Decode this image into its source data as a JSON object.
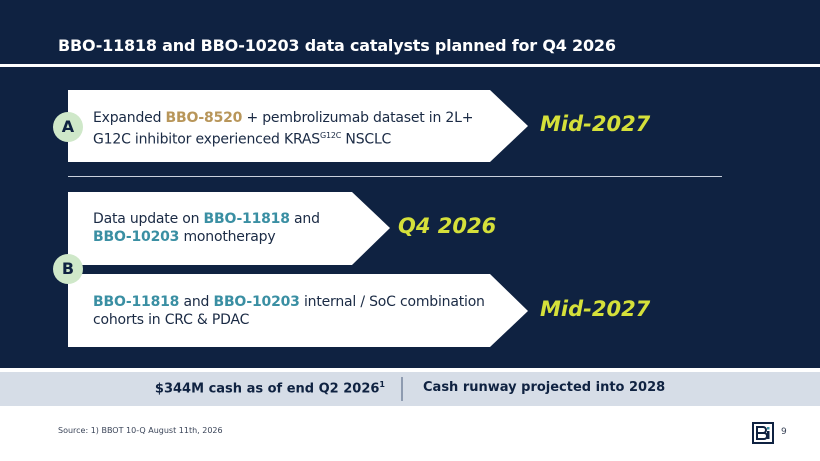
{
  "header": {
    "title": "BBO-11818 and BBO-10203 data catalysts planned for Q4 2026"
  },
  "groups": [
    {
      "label": "A",
      "items": [
        {
          "runs": [
            {
              "text": "Expanded "
            },
            {
              "text": "BBO-8520",
              "color": "#b8965a"
            },
            {
              "text": " + pembrolizumab dataset in 2L+ G12C inhibitor experienced KRAS"
            },
            {
              "text": "G12C",
              "sup": true
            },
            {
              "text": " NSCLC"
            }
          ],
          "timing": "Mid-2027"
        }
      ]
    },
    {
      "label": "B",
      "items": [
        {
          "runs": [
            {
              "text": "Data update on "
            },
            {
              "text": "BBO-11818",
              "color": "#3a8fa3"
            },
            {
              "text": " and "
            },
            {
              "text": "BBO-10203",
              "color": "#3a8fa3"
            },
            {
              "text": " monotherapy"
            }
          ],
          "timing": "Q4 2026"
        },
        {
          "runs": [
            {
              "text": "BBO-11818",
              "color": "#3a8fa3"
            },
            {
              "text": " and "
            },
            {
              "text": "BBO-10203",
              "color": "#3a8fa3"
            },
            {
              "text": " internal / SoC combination cohorts in CRC & PDAC"
            }
          ],
          "timing": "Mid-2027"
        }
      ]
    }
  ],
  "cash": {
    "left": "$344M cash as of end Q2 2026",
    "left_sup": "1",
    "right": "Cash runway projected into 2028"
  },
  "footer": {
    "source": "Source: 1) BBOT 10-Q August 11th, 2026",
    "page": "9"
  }
}
